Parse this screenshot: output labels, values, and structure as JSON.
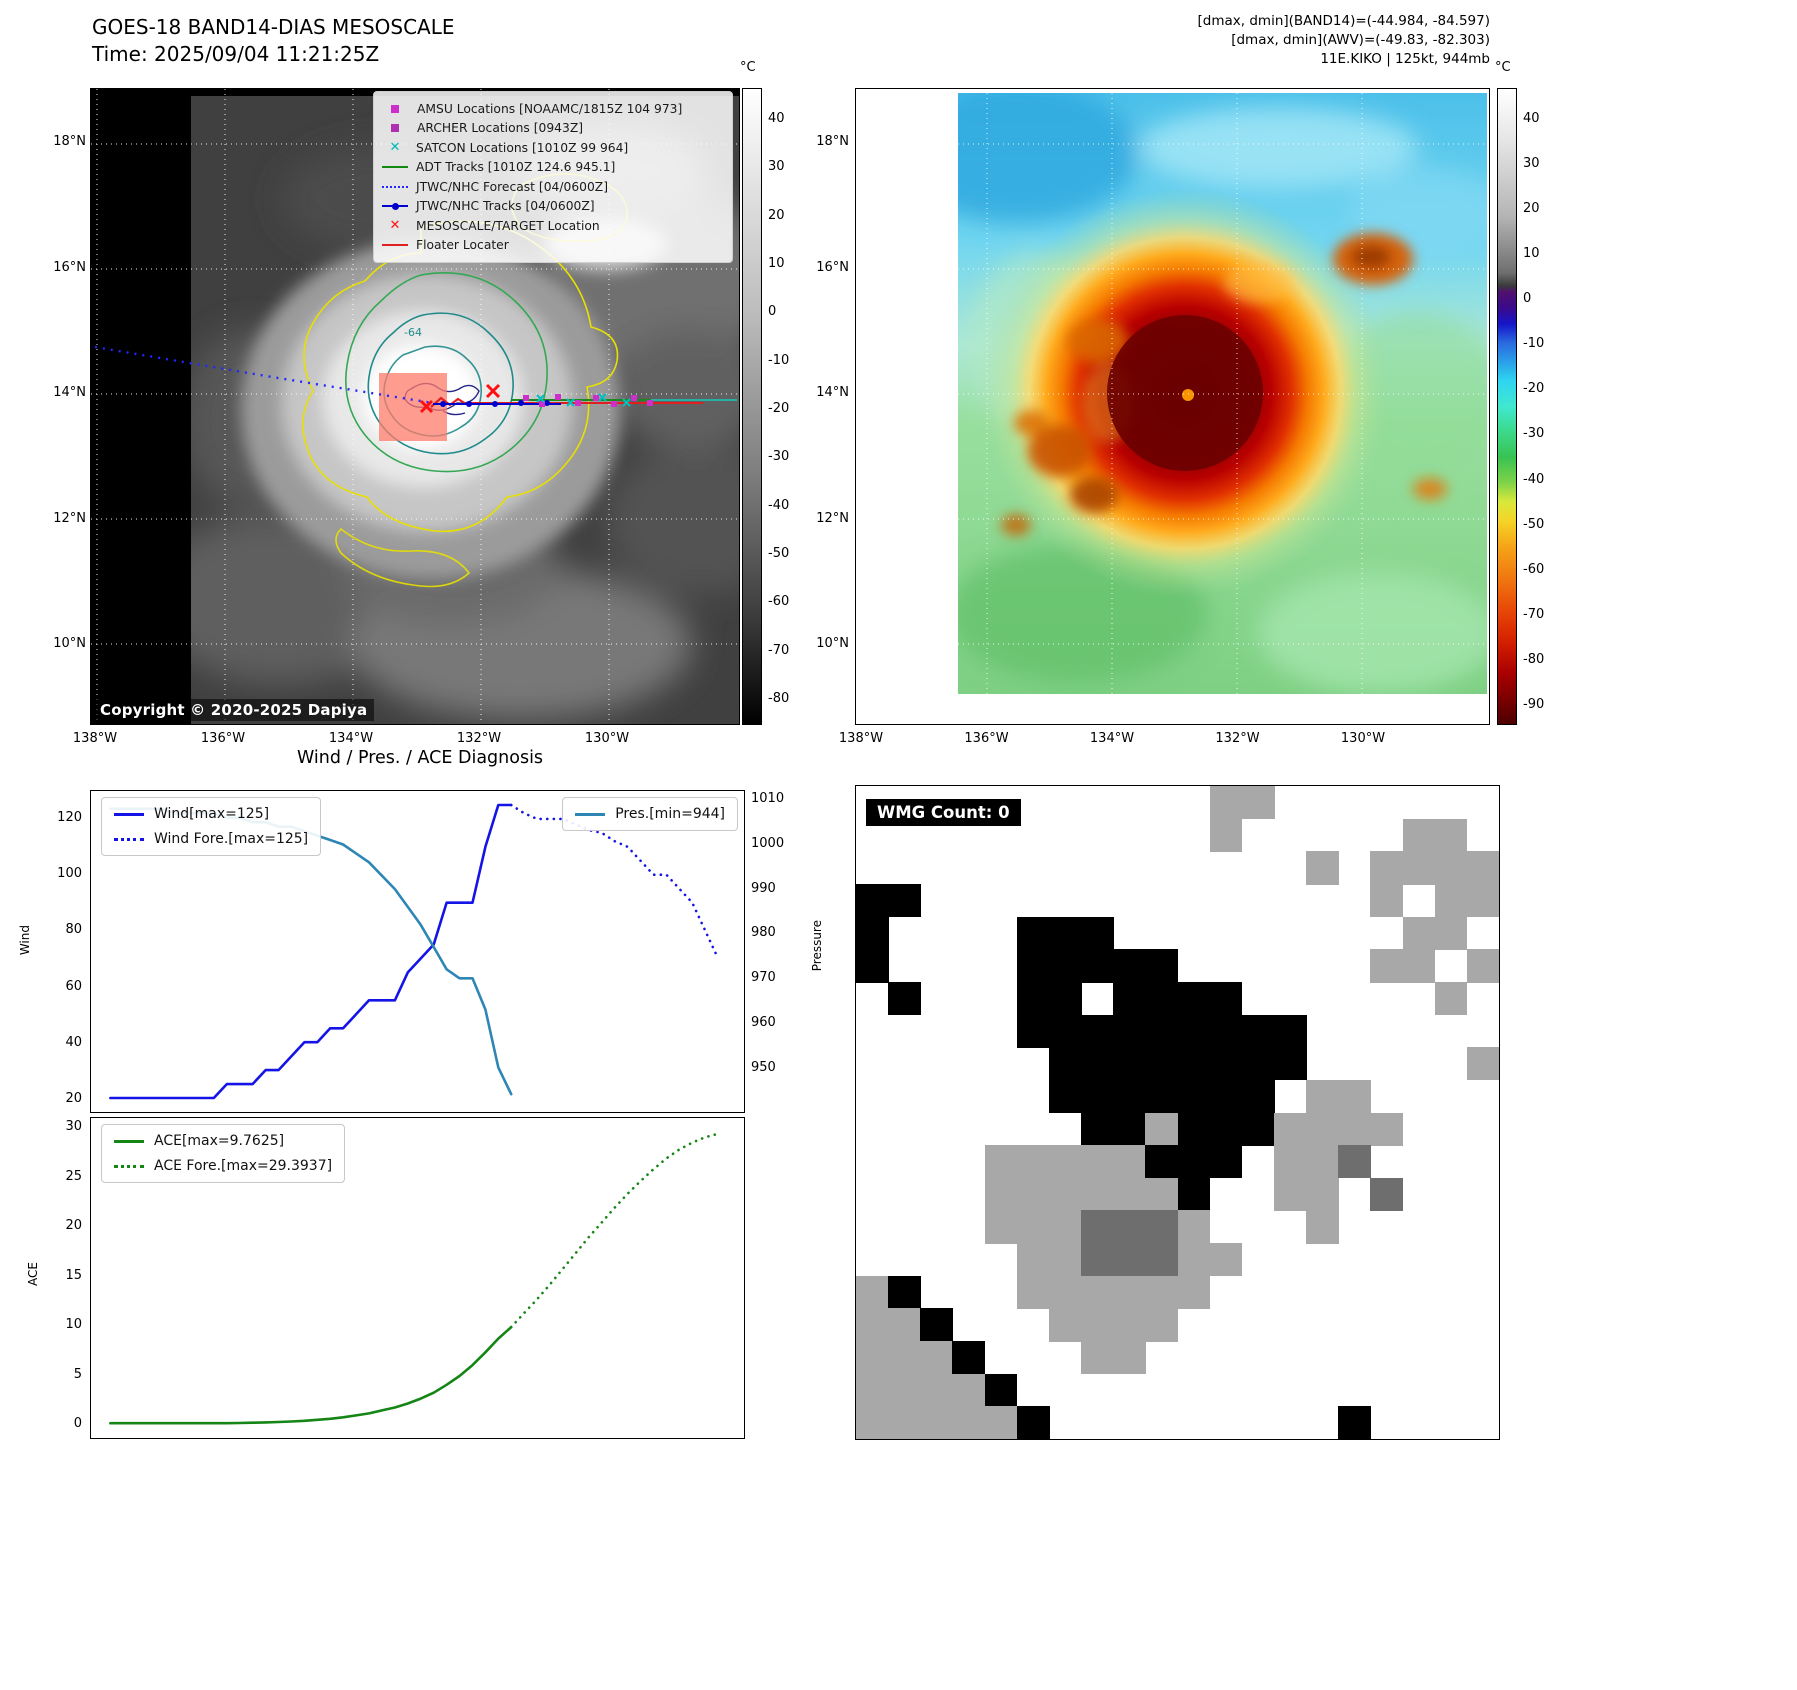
{
  "panel_tl": {
    "title": "GOES-18 BAND14-DIAS MESOSCALE",
    "time_line": "Time: 2025/09/04 11:21:25Z",
    "copyright": "Copyright © 2020-2025 Dapiya",
    "legend": [
      {
        "label": "AMSU Locations [NOAAMC/1815Z 104 973]",
        "marker": "square",
        "color": "#cc2fcc"
      },
      {
        "label": "ARCHER Locations [0943Z]",
        "marker": "square",
        "color": "#b02fb0"
      },
      {
        "label": "SATCON Locations [1010Z 99 964]",
        "marker": "x",
        "color": "#00b8b8"
      },
      {
        "label": "ADT Tracks [1010Z 124.6 945.1]",
        "marker": "line",
        "color": "#128a12"
      },
      {
        "label": "JTWC/NHC Forecast [04/0600Z]",
        "marker": "dotted-line",
        "color": "#2525ff"
      },
      {
        "label": "JTWC/NHC Tracks [04/0600Z]",
        "marker": "line-dot",
        "color": "#0000cc"
      },
      {
        "label": "MESOSCALE/TARGET Location",
        "marker": "x",
        "color": "#ff1010"
      },
      {
        "label": "Floater Locater",
        "marker": "line",
        "color": "#e02020"
      }
    ],
    "lat_ticks": [
      "18°N",
      "16°N",
      "14°N",
      "12°N",
      "10°N"
    ],
    "lon_ticks": [
      "138°W",
      "136°W",
      "134°W",
      "132°W",
      "130°W"
    ],
    "colorbar": {
      "unit": "°C",
      "ticks": [
        "40",
        "30",
        "20",
        "10",
        "0",
        "-10",
        "-20",
        "-30",
        "-40",
        "-50",
        "-60",
        "-70",
        "-80"
      ]
    }
  },
  "panel_tr": {
    "header_lines": [
      "[dmax, dmin](BAND14)=(-44.984, -84.597)",
      "[dmax, dmin](AWV)=(-49.83, -82.303)",
      "11E.KIKO | 125kt, 944mb"
    ],
    "lat_ticks": [
      "18°N",
      "16°N",
      "14°N",
      "12°N",
      "10°N"
    ],
    "lon_ticks": [
      "138°W",
      "136°W",
      "134°W",
      "132°W",
      "130°W"
    ],
    "colorbar": {
      "unit": "°C",
      "ticks": [
        "40",
        "30",
        "20",
        "10",
        "0",
        "-10",
        "-20",
        "-30",
        "-40",
        "-50",
        "-60",
        "-70",
        "-80",
        "-90"
      ]
    }
  },
  "chart_data": [
    {
      "type": "line",
      "title": "Wind / Pres. / ACE Diagnosis",
      "ylabel_left": "Wind",
      "ylabel_right": "Pressure",
      "xlim": [
        -1.5,
        49
      ],
      "yticks_left": [
        20,
        40,
        60,
        80,
        100,
        120
      ],
      "yticks_right": [
        950,
        960,
        970,
        980,
        990,
        1000,
        1010
      ],
      "ylim_left": [
        15,
        130
      ],
      "ylim_right": [
        940,
        1012
      ],
      "legend_position": "upper left / upper right",
      "grid": false,
      "series": [
        {
          "name": "wind-history",
          "legend": "Wind[max=125]",
          "color": "#1414e6",
          "style": "solid",
          "axis": "left",
          "ylim": [
            15,
            130
          ],
          "x": [
            0,
            1,
            2,
            3,
            4,
            5,
            6,
            7,
            8,
            9,
            10,
            11,
            12,
            13,
            14,
            15,
            16,
            17,
            18,
            19,
            20,
            21,
            22,
            23,
            24,
            25,
            26,
            27,
            28,
            29,
            30,
            31
          ],
          "y": [
            20,
            20,
            20,
            20,
            20,
            20,
            20,
            20,
            20,
            25,
            25,
            25,
            30,
            30,
            35,
            40,
            40,
            45,
            45,
            50,
            55,
            55,
            55,
            65,
            70,
            75,
            90,
            90,
            90,
            110,
            125,
            125
          ]
        },
        {
          "name": "wind-forecast",
          "legend": "Wind Fore.[max=125]",
          "color": "#1414e6",
          "style": "dotted",
          "axis": "left",
          "ylim": [
            15,
            130
          ],
          "x": [
            31,
            32,
            33,
            34,
            35,
            36,
            37,
            38,
            39,
            40,
            41,
            42,
            43,
            44,
            45,
            46,
            47
          ],
          "y": [
            125,
            122,
            120,
            120,
            120,
            118,
            116,
            115,
            112,
            110,
            105,
            100,
            100,
            95,
            90,
            80,
            70
          ]
        },
        {
          "name": "pressure-history",
          "legend": "Pres.[min=944]",
          "color": "#2e86b4",
          "style": "solid",
          "axis": "right",
          "ylim": [
            940,
            1012
          ],
          "x": [
            0,
            1,
            2,
            3,
            4,
            5,
            6,
            7,
            8,
            9,
            10,
            11,
            12,
            13,
            14,
            15,
            16,
            17,
            18,
            19,
            20,
            21,
            22,
            23,
            24,
            25,
            26,
            27,
            28,
            29,
            30,
            31
          ],
          "y": [
            1008,
            1008,
            1008,
            1008,
            1008,
            1007,
            1007,
            1007,
            1007,
            1006,
            1006,
            1005,
            1005,
            1004,
            1004,
            1003,
            1002,
            1001,
            1000,
            998,
            996,
            993,
            990,
            986,
            982,
            977,
            972,
            970,
            970,
            963,
            950,
            944
          ]
        }
      ]
    },
    {
      "type": "line",
      "title": "",
      "ylabel": "ACE",
      "xlim": [
        -1.5,
        49
      ],
      "yticks": [
        0,
        5,
        10,
        15,
        20,
        25,
        30
      ],
      "ylim": [
        -1.5,
        31
      ],
      "grid": false,
      "series": [
        {
          "name": "ace-history",
          "legend": "ACE[max=9.7625]",
          "color": "#158515",
          "style": "solid",
          "ylim": [
            -1.5,
            31
          ],
          "x": [
            0,
            1,
            2,
            3,
            4,
            5,
            6,
            7,
            8,
            9,
            10,
            11,
            12,
            13,
            14,
            15,
            16,
            17,
            18,
            19,
            20,
            21,
            22,
            23,
            24,
            25,
            26,
            27,
            28,
            29,
            30,
            31
          ],
          "y": [
            0,
            0,
            0,
            0,
            0,
            0,
            0,
            0,
            0,
            0,
            0.02,
            0.05,
            0.08,
            0.12,
            0.18,
            0.25,
            0.35,
            0.45,
            0.6,
            0.8,
            1.0,
            1.3,
            1.6,
            2.0,
            2.5,
            3.1,
            3.9,
            4.8,
            5.9,
            7.2,
            8.6,
            9.7625
          ]
        },
        {
          "name": "ace-forecast",
          "legend": "ACE Fore.[max=29.3937]",
          "color": "#158515",
          "style": "dotted",
          "ylim": [
            -1.5,
            31
          ],
          "x": [
            31,
            32,
            33,
            34,
            35,
            36,
            37,
            38,
            39,
            40,
            41,
            42,
            43,
            44,
            45,
            46,
            47
          ],
          "y": [
            9.7625,
            11.2,
            12.6,
            14.1,
            15.7,
            17.3,
            18.9,
            20.4,
            21.9,
            23.3,
            24.6,
            25.8,
            26.9,
            27.8,
            28.5,
            29.05,
            29.3937
          ]
        }
      ]
    }
  ],
  "panel_br": {
    "wmg_label": "WMG Count: 0",
    "grid_colors": {
      "g": "#a8a8a8",
      "d": "#6e6e6e",
      "k": "#000000"
    },
    "grid": [
      "...........gg.......",
      "...........g.....gg.",
      "..............g.gggg",
      "kk..............g.gg",
      "k....kkk.........gg.",
      "k....kkkkk......gg.g",
      ".k...kk.kkkk......g.",
      ".....kkkkkkkkk......",
      "......kkkkkkkk.....g",
      "......kkkkkkk.gg....",
      ".......kkgkkkgggg...",
      "....gggggkkk.ggd....",
      "....ggggggk..gg.d...",
      "....gggdddg...g.....",
      ".....ggdddgg........",
      "gk...gggggg.........",
      "ggk...gggg..........",
      "gggk...gg...........",
      "ggggk...............",
      "gggggk.........k...."
    ]
  }
}
